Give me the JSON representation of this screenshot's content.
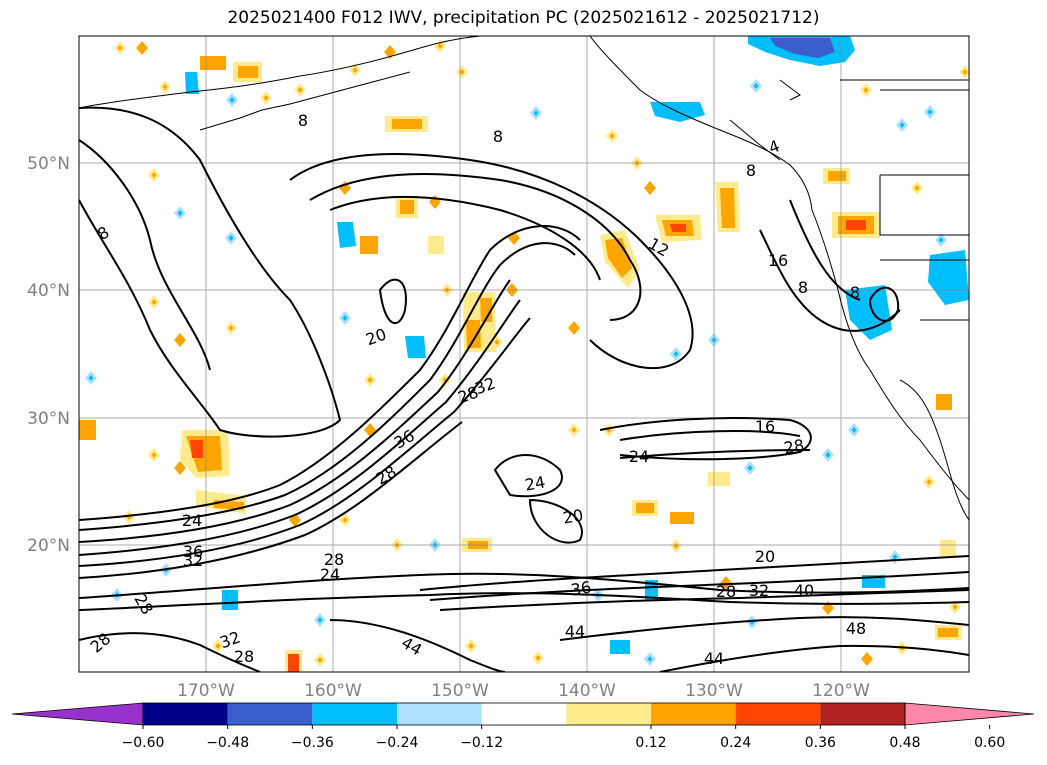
{
  "title": "2025021400 F012 IWV, precipitation PC (2025021612 - 2025021712)",
  "lat_labels": [
    "50°N",
    "40°N",
    "30°N",
    "20°N"
  ],
  "lon_labels": [
    "170°W",
    "160°W",
    "150°W",
    "140°W",
    "130°W",
    "120°W"
  ],
  "colorbar": {
    "ticks": [
      "−0.60",
      "−0.48",
      "−0.36",
      "−0.24",
      "−0.12",
      "0.12",
      "0.24",
      "0.36",
      "0.48",
      "0.60"
    ],
    "colors": [
      "#9932CC",
      "#00008B",
      "#3A5FCD",
      "#00BFFF",
      "#ADDFFF",
      "#FFFFFF",
      "#FFEB8B",
      "#FFA500",
      "#FF4500",
      "#B22222",
      "#FF88AA"
    ]
  },
  "contour_labels": [
    "8",
    "8",
    "8",
    "8",
    "4",
    "12",
    "16",
    "8",
    "8",
    "20",
    "28",
    "32",
    "36",
    "28",
    "24",
    "24",
    "20",
    "16",
    "28",
    "24",
    "36",
    "32",
    "28",
    "24",
    "20",
    "32",
    "40",
    "28",
    "36",
    "48",
    "44",
    "44",
    "44",
    "28",
    "28",
    "32",
    "28"
  ]
}
